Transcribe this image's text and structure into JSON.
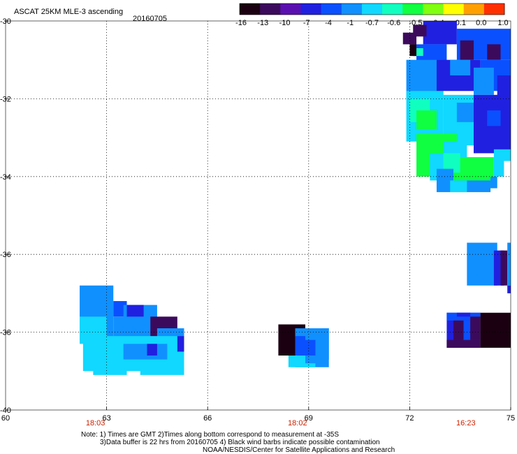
{
  "title": "ASCAT 25KM MLE-3 ascending",
  "date": "20160705",
  "colorbar": {
    "tick_labels": [
      "-16",
      "-13",
      "-10",
      "-7",
      "-4",
      "-1",
      "-0.7",
      "-0.6",
      "-0.5",
      "-0.4",
      "-0.1",
      "0.0",
      "1.0"
    ],
    "colors": [
      "#1a0010",
      "#3c0a5c",
      "#5a10b0",
      "#2020e0",
      "#0a50ff",
      "#1090ff",
      "#10d8ff",
      "#10ffc0",
      "#10ff40",
      "#80ff10",
      "#ffff00",
      "#ffa000",
      "#ff3000"
    ]
  },
  "axes": {
    "x_ticks": [
      60,
      63,
      66,
      69,
      72,
      75
    ],
    "x_tick_labels": [
      "60",
      "63",
      "66",
      "69",
      "72",
      "75"
    ],
    "y_ticks": [
      -30,
      -32,
      -34,
      -36,
      -38,
      -40
    ],
    "y_tick_labels": [
      "-30",
      "-32",
      "-34",
      "-36",
      "-38",
      "-40"
    ],
    "x_range": [
      60,
      75
    ],
    "y_range": [
      -40,
      -30
    ],
    "gridlines": true
  },
  "pass_times": [
    {
      "label": "18:03",
      "lon": 63
    },
    {
      "label": "18:02",
      "lon": 69
    },
    {
      "label": "16:23",
      "lon": 74
    }
  ],
  "notes": [
    "Note: 1) Times are GMT 2)Times along bottom correspond to measurement at -35S",
    "3)Data buffer is 22 hrs from 20160705 4) Black wind barbs indicate possible contamination",
    "NOAA/NESDIS/Center for Satellite Applications and Research"
  ],
  "swaths": [
    {
      "name": "swath-northeast",
      "cells": [
        [
          72.4,
          -30.0,
          73.4,
          -30.6,
          "#2020e0"
        ],
        [
          72.1,
          -30.1,
          72.5,
          -30.4,
          "#3c0a5c"
        ],
        [
          71.8,
          -30.3,
          72.2,
          -30.6,
          "#3c0a5c"
        ],
        [
          73.4,
          -30.2,
          75.0,
          -31.0,
          "#0a50ff"
        ],
        [
          73.5,
          -30.5,
          73.9,
          -31.0,
          "#3c0a5c"
        ],
        [
          74.3,
          -30.6,
          74.7,
          -31.0,
          "#3c0a5c"
        ],
        [
          72.0,
          -30.6,
          72.2,
          -30.9,
          "#1a0010"
        ],
        [
          72.1,
          -30.7,
          72.5,
          -30.9,
          "#1a0010"
        ],
        [
          72.2,
          -30.6,
          73.1,
          -31.1,
          "#0a50ff"
        ],
        [
          72.2,
          -30.7,
          72.4,
          -30.9,
          "#10ffc0"
        ],
        [
          71.9,
          -31.0,
          73.0,
          -32.0,
          "#1090ff"
        ],
        [
          72.8,
          -31.0,
          74.1,
          -31.8,
          "#2020e0"
        ],
        [
          73.2,
          -31.0,
          73.8,
          -31.4,
          "#1090ff"
        ],
        [
          74.1,
          -31.0,
          75.0,
          -31.8,
          "#0a50ff"
        ],
        [
          73.9,
          -31.2,
          74.5,
          -31.9,
          "#1090ff"
        ],
        [
          74.6,
          -31.4,
          75.0,
          -32.0,
          "#2020e0"
        ],
        [
          71.9,
          -31.8,
          73.0,
          -33.1,
          "#10d8ff"
        ],
        [
          72.0,
          -32.0,
          72.6,
          -32.6,
          "#10ffc0"
        ],
        [
          72.2,
          -32.3,
          72.8,
          -32.8,
          "#10ff40"
        ],
        [
          73.0,
          -31.9,
          73.9,
          -33.2,
          "#10d8ff"
        ],
        [
          73.4,
          -32.1,
          73.9,
          -32.6,
          "#1090ff"
        ],
        [
          73.9,
          -31.9,
          75.0,
          -33.4,
          "#2020e0"
        ],
        [
          74.3,
          -32.3,
          74.7,
          -32.7,
          "#0a50ff"
        ],
        [
          72.2,
          -32.9,
          73.4,
          -34.0,
          "#10ff40"
        ],
        [
          73.0,
          -33.1,
          73.7,
          -33.6,
          "#10d8ff"
        ],
        [
          72.6,
          -33.4,
          73.0,
          -34.1,
          "#10d8ff"
        ],
        [
          73.3,
          -33.5,
          74.5,
          -34.3,
          "#10ff40"
        ],
        [
          73.0,
          -33.4,
          73.5,
          -33.9,
          "#10ffc0"
        ],
        [
          74.5,
          -33.3,
          75.0,
          -33.6,
          "#10d8ff"
        ],
        [
          74.5,
          -33.5,
          74.8,
          -34.0,
          "#10d8ff"
        ],
        [
          72.8,
          -33.8,
          73.3,
          -34.3,
          "#1090ff"
        ],
        [
          72.8,
          -34.1,
          74.4,
          -34.4,
          "#1090ff"
        ],
        [
          73.2,
          -34.1,
          73.7,
          -34.4,
          "#10d8ff"
        ],
        [
          74.4,
          -34.0,
          74.6,
          -34.3,
          "#1090ff"
        ]
      ]
    },
    {
      "name": "swath-east-mid",
      "cells": [
        [
          73.7,
          -35.7,
          74.6,
          -36.8,
          "#1090ff"
        ],
        [
          74.5,
          -35.9,
          74.8,
          -36.8,
          "#2020e0"
        ],
        [
          74.7,
          -35.9,
          74.9,
          -36.8,
          "#3c0a5c"
        ],
        [
          74.9,
          -35.7,
          75.0,
          -36.8,
          "#1090ff"
        ],
        [
          74.9,
          -36.8,
          75.0,
          -37.0,
          "#2020e0"
        ]
      ]
    },
    {
      "name": "swath-east-south",
      "cells": [
        [
          73.1,
          -37.5,
          74.1,
          -38.4,
          "#2020e0"
        ],
        [
          73.1,
          -37.5,
          74.1,
          -37.7,
          "#0a50ff"
        ],
        [
          73.3,
          -37.7,
          73.6,
          -38.2,
          "#3c0a5c"
        ],
        [
          73.6,
          -37.7,
          73.8,
          -38.2,
          "#0a50ff"
        ],
        [
          73.8,
          -37.6,
          74.1,
          -38.2,
          "#3c0a5c"
        ],
        [
          73.1,
          -38.2,
          74.1,
          -38.4,
          "#3c0a5c"
        ],
        [
          74.1,
          -37.5,
          75.0,
          -38.4,
          "#1a0010"
        ],
        [
          73.4,
          -37.5,
          73.8,
          -37.6,
          "#2020e0"
        ]
      ]
    },
    {
      "name": "swath-center",
      "cells": [
        [
          68.1,
          -37.8,
          68.9,
          -38.6,
          "#1a0010"
        ],
        [
          68.6,
          -37.9,
          69.6,
          -38.9,
          "#1090ff"
        ],
        [
          68.6,
          -38.1,
          68.9,
          -38.6,
          "#0a50ff"
        ],
        [
          68.9,
          -38.2,
          69.2,
          -38.8,
          "#0a50ff"
        ],
        [
          68.4,
          -38.6,
          69.2,
          -38.9,
          "#10d8ff"
        ],
        [
          68.9,
          -38.6,
          69.4,
          -38.8,
          "#1090ff"
        ],
        [
          69.4,
          -37.9,
          69.6,
          -38.7,
          "#1090ff"
        ]
      ]
    },
    {
      "name": "swath-west",
      "cells": [
        [
          62.2,
          -36.8,
          63.2,
          -38.2,
          "#1090ff"
        ],
        [
          63.2,
          -37.2,
          63.6,
          -37.6,
          "#0a50ff"
        ],
        [
          63.2,
          -37.6,
          63.8,
          -38.2,
          "#1090ff"
        ],
        [
          62.2,
          -37.6,
          63.0,
          -38.3,
          "#10d8ff"
        ],
        [
          63.5,
          -37.3,
          64.5,
          -38.5,
          "#1090ff"
        ],
        [
          63.6,
          -37.3,
          64.1,
          -37.6,
          "#2020e0"
        ],
        [
          64.3,
          -37.6,
          65.1,
          -38.2,
          "#3c0a5c"
        ],
        [
          64.5,
          -37.9,
          65.3,
          -38.6,
          "#1090ff"
        ],
        [
          64.8,
          -38.2,
          65.1,
          -38.6,
          "#0a50ff"
        ],
        [
          62.3,
          -38.1,
          65.3,
          -39.0,
          "#10d8ff"
        ],
        [
          63.5,
          -38.3,
          64.8,
          -38.7,
          "#1090ff"
        ],
        [
          64.2,
          -38.3,
          64.5,
          -38.6,
          "#2020e0"
        ],
        [
          65.1,
          -38.1,
          65.3,
          -38.5,
          "#2020e0"
        ],
        [
          62.6,
          -38.9,
          63.6,
          -39.1,
          "#10d8ff"
        ],
        [
          64.0,
          -38.9,
          65.3,
          -39.1,
          "#10d8ff"
        ]
      ]
    }
  ]
}
